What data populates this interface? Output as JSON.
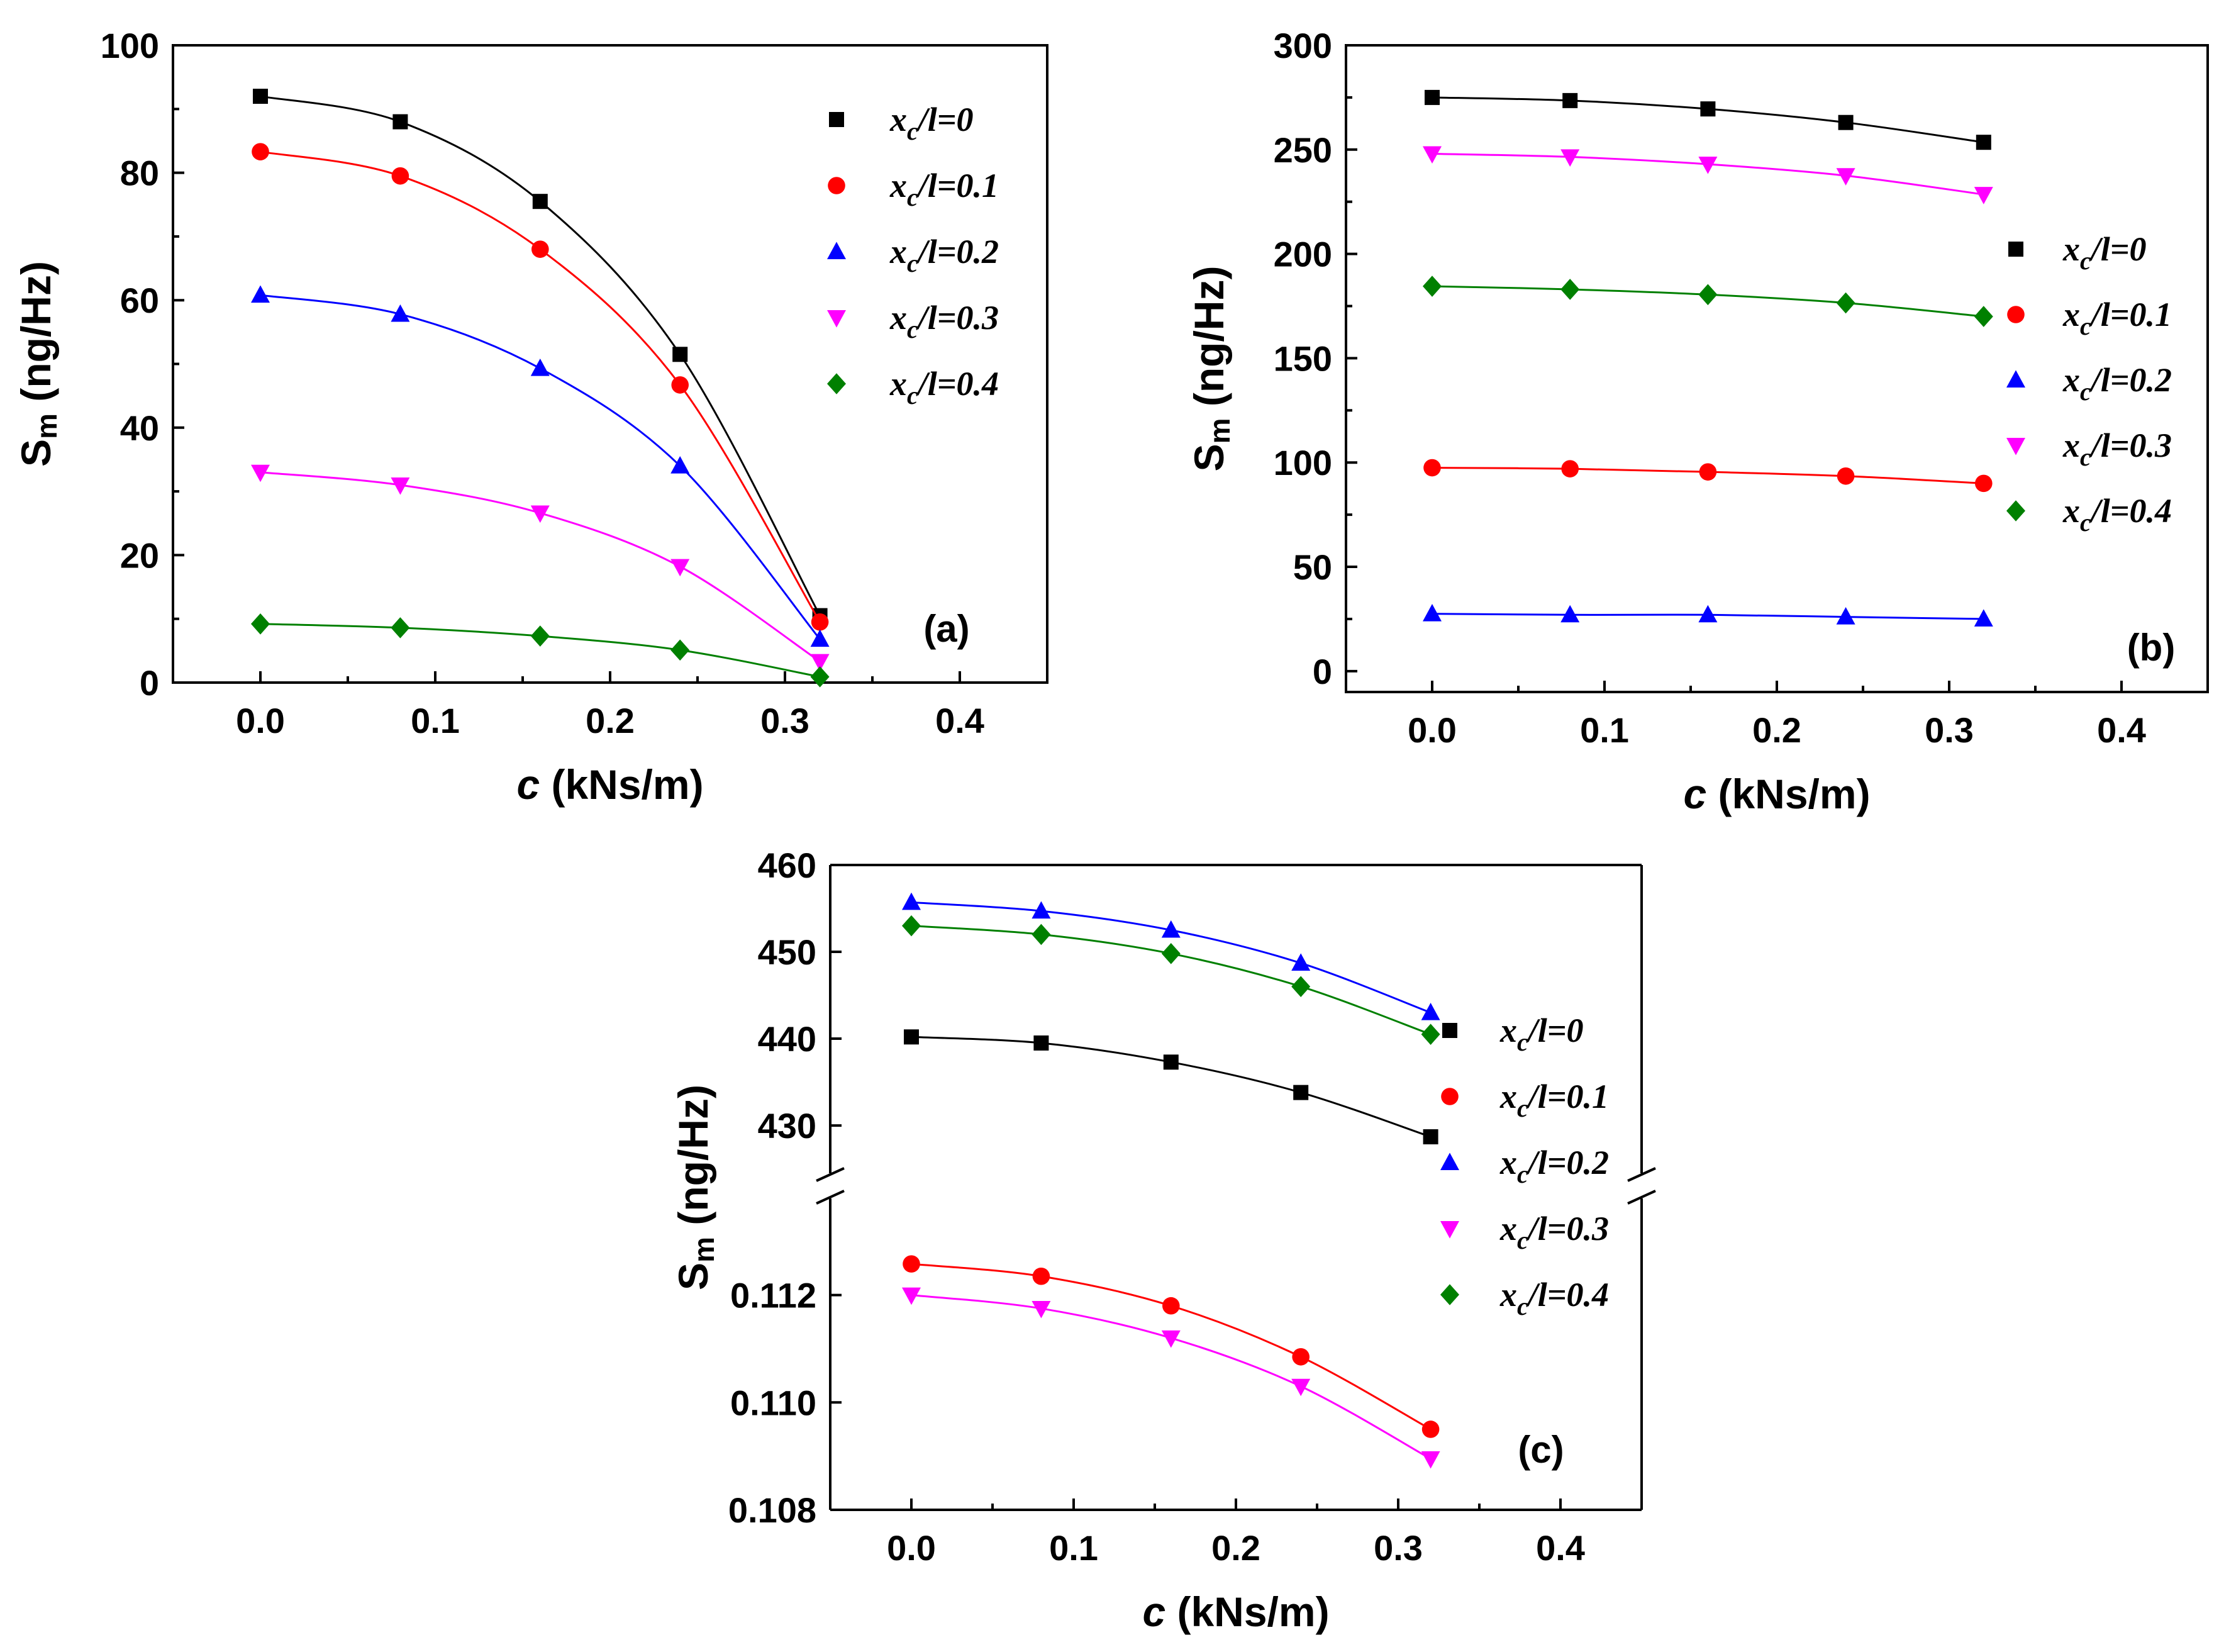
{
  "chart_data": [
    {
      "panel": "(a)",
      "type": "scatter",
      "xlabel_symbol": "c",
      "xlabel_unit": "(kNs/m)",
      "ylabel_main": "S",
      "ylabel_sub": "m",
      "ylabel_unit": "(ng/Hz)",
      "xlim": [
        -0.05,
        0.45
      ],
      "ylim": [
        0,
        100
      ],
      "xticks": [
        "0.0",
        "0.1",
        "0.2",
        "0.3",
        "0.4"
      ],
      "yticks": [
        "0",
        "20",
        "40",
        "60",
        "80",
        "100"
      ],
      "legend_position": "top-right",
      "x": [
        0.0,
        0.08,
        0.16,
        0.24,
        0.32
      ],
      "series": [
        {
          "name": "x_c/l=0",
          "sub": "c",
          "value": "0",
          "color": "#000000",
          "marker": "square",
          "values": [
            92,
            88,
            75.5,
            51.5,
            10.5
          ]
        },
        {
          "name": "x_c/l=0.1",
          "sub": "c",
          "value": "0.1",
          "color": "#ff0000",
          "marker": "circle",
          "values": [
            83.3,
            79.5,
            68,
            46.7,
            9.5
          ]
        },
        {
          "name": "x_c/l=0.2",
          "sub": "c",
          "value": "0.2",
          "color": "#0000ff",
          "marker": "triangle-up",
          "values": [
            60.8,
            57.8,
            49.3,
            34,
            6.8
          ]
        },
        {
          "name": "x_c/l=0.3",
          "sub": "c",
          "value": "0.3",
          "color": "#ff00ff",
          "marker": "triangle-down",
          "values": [
            33,
            31,
            26.6,
            18.2,
            3.3
          ]
        },
        {
          "name": "x_c/l=0.4",
          "sub": "c",
          "value": "0.4",
          "color": "#008000",
          "marker": "diamond",
          "values": [
            9.2,
            8.6,
            7.3,
            5.1,
            0.9
          ]
        }
      ]
    },
    {
      "panel": "(b)",
      "type": "scatter",
      "xlabel_symbol": "c",
      "xlabel_unit": "(kNs/m)",
      "ylabel_main": "S",
      "ylabel_sub": "m",
      "ylabel_unit": "(ng/Hz)",
      "xlim": [
        -0.05,
        0.45
      ],
      "ylim": [
        -10,
        300
      ],
      "xticks": [
        "0.0",
        "0.1",
        "0.2",
        "0.3",
        "0.4"
      ],
      "yticks": [
        "0",
        "50",
        "100",
        "150",
        "200",
        "250",
        "300"
      ],
      "legend_position": "right",
      "x": [
        0.0,
        0.08,
        0.16,
        0.24,
        0.32
      ],
      "series": [
        {
          "name": "x_c/l=0",
          "sub": "c",
          "value": "0",
          "color": "#000000",
          "marker": "square",
          "values": [
            275,
            273.5,
            269.5,
            263,
            253.5
          ]
        },
        {
          "name": "x_c/l=0.1",
          "sub": "c",
          "value": "0.1",
          "color": "#ff0000",
          "marker": "circle",
          "values": [
            97.5,
            97,
            95.5,
            93.5,
            90
          ]
        },
        {
          "name": "x_c/l=0.2",
          "sub": "c",
          "value": "0.2",
          "color": "#0000ff",
          "marker": "triangle-up",
          "values": [
            27.5,
            27,
            27,
            26,
            25
          ]
        },
        {
          "name": "x_c/l=0.3",
          "sub": "c",
          "value": "0.3",
          "color": "#ff00ff",
          "marker": "triangle-down",
          "values": [
            248,
            246.5,
            243,
            237.5,
            228.5
          ]
        },
        {
          "name": "x_c/l=0.4",
          "sub": "c",
          "value": "0.4",
          "color": "#008000",
          "marker": "diamond",
          "values": [
            184.5,
            183,
            180.5,
            176.5,
            170
          ]
        }
      ]
    },
    {
      "panel": "(c)",
      "type": "scatter",
      "broken_y_axis": true,
      "xlabel_symbol": "c",
      "xlabel_unit": "(kNs/m)",
      "ylabel_main": "S",
      "ylabel_sub": "m",
      "ylabel_unit": "(ng/Hz)",
      "xlim": [
        -0.05,
        0.45
      ],
      "ylim_upper": [
        424.5,
        460
      ],
      "ylim_lower": [
        0.108,
        0.1138
      ],
      "xticks": [
        "0.0",
        "0.1",
        "0.2",
        "0.3",
        "0.4"
      ],
      "yticks_upper": [
        "430",
        "440",
        "450",
        "460"
      ],
      "yticks_lower": [
        "0.108",
        "0.110",
        "0.112"
      ],
      "legend_position": "right",
      "x": [
        0.0,
        0.08,
        0.16,
        0.24,
        0.32
      ],
      "series": [
        {
          "name": "x_c/l=0",
          "sub": "c",
          "value": "0",
          "color": "#000000",
          "marker": "square",
          "segment": "upper",
          "values": [
            440.2,
            439.5,
            437.3,
            433.8,
            428.7
          ]
        },
        {
          "name": "x_c/l=0.1",
          "sub": "c",
          "value": "0.1",
          "color": "#ff0000",
          "marker": "circle",
          "segment": "lower",
          "values": [
            0.11258,
            0.11235,
            0.1118,
            0.11085,
            0.1095
          ]
        },
        {
          "name": "x_c/l=0.2",
          "sub": "c",
          "value": "0.2",
          "color": "#0000ff",
          "marker": "triangle-up",
          "segment": "upper",
          "values": [
            455.7,
            454.7,
            452.5,
            448.7,
            443
          ]
        },
        {
          "name": "x_c/l=0.3",
          "sub": "c",
          "value": "0.3",
          "color": "#ff00ff",
          "marker": "triangle-down",
          "segment": "lower",
          "values": [
            0.112,
            0.11175,
            0.1112,
            0.1103,
            0.10895
          ]
        },
        {
          "name": "x_c/l=0.4",
          "sub": "c",
          "value": "0.4",
          "color": "#008000",
          "marker": "diamond",
          "segment": "upper",
          "values": [
            453,
            452,
            449.8,
            446,
            440.5
          ]
        }
      ]
    }
  ]
}
